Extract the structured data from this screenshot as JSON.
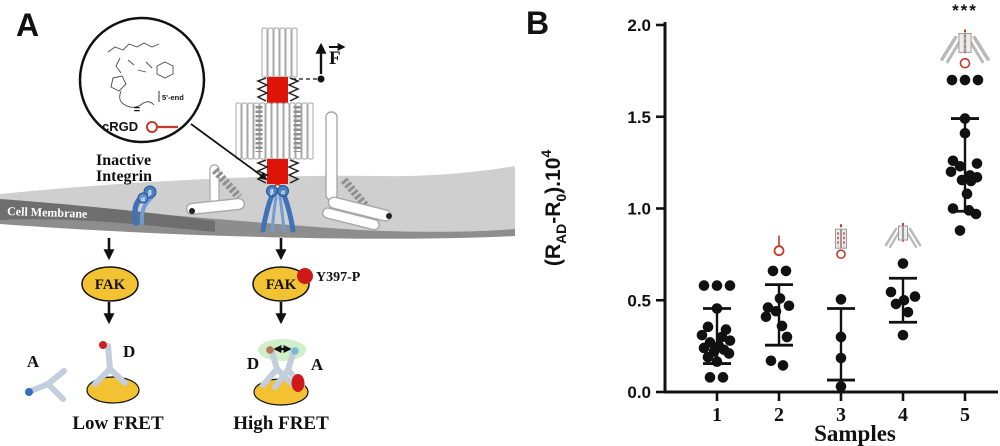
{
  "panel_a": {
    "label": "A",
    "inset": {
      "equals_sign": "=",
      "ligand_name": "cRGD",
      "end_label": "5'-end"
    },
    "force_label": "F",
    "integrin": {
      "beta": "β",
      "alpha": "α"
    },
    "inactive_integrin": [
      "Inactive",
      "Integrin"
    ],
    "membrane_label": "Cell Membrane",
    "pathway_left": {
      "kinase": "FAK",
      "donor": "D",
      "acceptor": "A",
      "caption": "Low FRET"
    },
    "pathway_right": {
      "kinase": "FAK",
      "phospho_site": "Y397-P",
      "donor": "D",
      "acceptor": "A",
      "caption": "High FRET"
    }
  },
  "panel_b": {
    "label": "B"
  },
  "colors": {
    "accent_red": "#d01818",
    "crgd_red": "#c23b2e",
    "integrin_blue": "#4a7fc1",
    "fak_yellow": "#f2c233",
    "antibody_gray": "#c3cedd",
    "membrane_gray": "#cfcfcf",
    "point_black": "#111111"
  },
  "chart_data": {
    "type": "scatter",
    "title": "",
    "xlabel": "Samples",
    "ylabel": "(R_AD-R_0).10^4",
    "ylabel_parts": [
      {
        "t": "(R"
      },
      {
        "t": "AD",
        "s": "sub"
      },
      {
        "t": "-R"
      },
      {
        "t": "0",
        "s": "sub"
      },
      {
        "t": ").10"
      },
      {
        "t": "4",
        "s": "sup"
      }
    ],
    "ylim": [
      0.0,
      2.0
    ],
    "yticks": [
      "0.0",
      "0.5",
      "1.0",
      "1.5",
      "2.0"
    ],
    "categories": [
      "1",
      "2",
      "3",
      "4",
      "5"
    ],
    "grid": false,
    "legend": false,
    "series": [
      {
        "sample": "1",
        "icon": "none",
        "values": [
          0.58,
          0.58,
          0.58,
          0.455,
          0.355,
          0.34,
          0.31,
          0.3,
          0.28,
          0.27,
          0.25,
          0.24,
          0.23,
          0.22,
          0.21,
          0.19,
          0.165,
          0.08,
          0.08
        ],
        "jitter": [
          -13,
          0,
          13,
          0,
          -9,
          9,
          -15,
          5,
          13,
          -7,
          2,
          -13,
          7,
          -3,
          12,
          -9,
          0,
          -7,
          6
        ],
        "whisker_low": 0.155,
        "whisker_high": 0.455
      },
      {
        "sample": "2",
        "icon": "cRGD-peptide",
        "icon_y": 0.77,
        "values": [
          0.66,
          0.66,
          0.51,
          0.47,
          0.46,
          0.44,
          0.41,
          0.36,
          0.3,
          0.17,
          0.145
        ],
        "jitter": [
          -6,
          7,
          1,
          10,
          -11,
          -3,
          -13,
          3,
          8,
          -8,
          4
        ],
        "whisker_low": 0.255,
        "whisker_high": 0.585
      },
      {
        "sample": "3",
        "icon": "dna-hairpin-crgd",
        "icon_y": 0.8,
        "values": [
          0.505,
          0.3,
          0.185,
          0.03
        ],
        "jitter": [
          0,
          0,
          0,
          0
        ],
        "whisker_low": 0.065,
        "whisker_high": 0.455
      },
      {
        "sample": "4",
        "icon": "origami-clamp",
        "icon_y": 0.85,
        "values": [
          0.7,
          0.545,
          0.52,
          0.5,
          0.48,
          0.435,
          0.31
        ],
        "jitter": [
          0,
          -12,
          12,
          1,
          -7,
          5,
          0
        ],
        "whisker_low": 0.38,
        "whisker_high": 0.62
      },
      {
        "sample": "5",
        "icon": "origami-clamp-crgd",
        "icon_y": 1.88,
        "values": [
          1.7,
          1.7,
          1.7,
          1.49,
          1.41,
          1.26,
          1.245,
          1.23,
          1.2,
          1.18,
          1.17,
          1.155,
          1.15,
          1.08,
          1.0,
          0.99,
          0.97,
          0.88
        ],
        "jitter": [
          -13,
          0,
          13,
          0,
          0,
          -12,
          12,
          -5,
          -14,
          5,
          12,
          -3,
          6,
          2,
          -12,
          4,
          11,
          -5
        ],
        "whisker_low": 0.985,
        "whisker_high": 1.49
      }
    ],
    "annotations": [
      {
        "text": "***",
        "sample": "5",
        "y": 2.05
      }
    ]
  }
}
